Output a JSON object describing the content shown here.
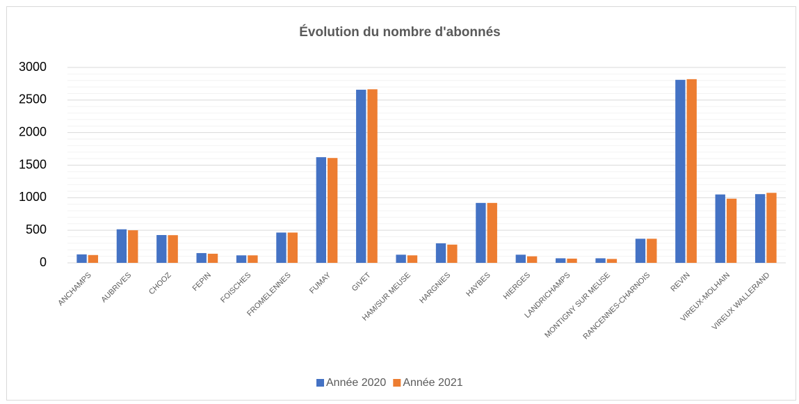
{
  "chart_data": {
    "type": "bar",
    "title": "Évolution du nombre d'abonnés",
    "categories": [
      "ANCHAMPS",
      "AUBRIVES",
      "CHOOZ",
      "FEPIN",
      "FOISCHES",
      "FROMELENNES",
      "FUMAY",
      "GIVET",
      "HAM/SUR MEUSE",
      "HARGNIES",
      "HAYBES",
      "HIERGES",
      "LANDRICHAMPS",
      "MONTIGNY SUR MEUSE",
      "RANCENNES-CHARNOIS",
      "REVIN",
      "VIREUX-MOLHAIN",
      "VIREUX WALLERAND"
    ],
    "series": [
      {
        "name": "Année 2020",
        "color": "#4472c4",
        "values": [
          130,
          515,
          427,
          150,
          115,
          465,
          1622,
          2658,
          125,
          300,
          920,
          125,
          70,
          70,
          370,
          2810,
          1050,
          1055
        ]
      },
      {
        "name": "Année 2021",
        "color": "#ed7d31",
        "values": [
          120,
          500,
          425,
          140,
          115,
          465,
          1610,
          2665,
          115,
          280,
          920,
          100,
          65,
          60,
          370,
          2820,
          985,
          1075
        ]
      }
    ],
    "ylim": [
      0,
      3000
    ],
    "yticks": [
      0,
      500,
      1000,
      1500,
      2000,
      2500,
      3000
    ],
    "grid": true,
    "legend": "bottom"
  }
}
